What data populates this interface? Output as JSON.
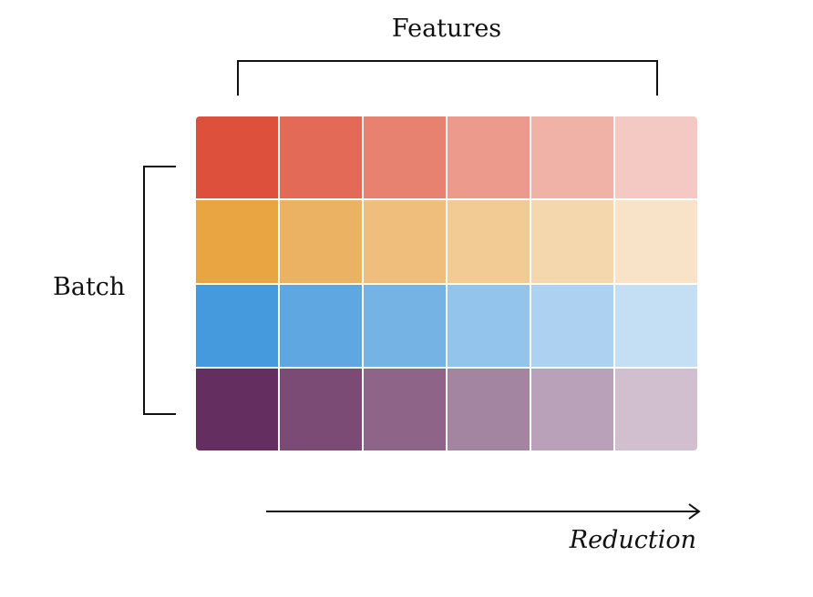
{
  "labels": {
    "features": "Features",
    "batch": "Batch",
    "reduction": "Reduction"
  },
  "grid": {
    "rows": 4,
    "columns": 6,
    "colors": [
      [
        "#dd503b",
        "#e36a56",
        "#e78271",
        "#ec9a8b",
        "#f0b2a7",
        "#f4c9c3"
      ],
      [
        "#e9a542",
        "#ecb264",
        "#f0be7c",
        "#f2ca94",
        "#f5d7ad",
        "#f8e3c8"
      ],
      [
        "#4599dd",
        "#5ea7e0",
        "#75b3e5",
        "#93c4eb",
        "#acd1f1",
        "#c4dff4"
      ],
      [
        "#652e61",
        "#7b4b76",
        "#8e6589",
        "#a385a1",
        "#baa1ba",
        "#d1becf"
      ]
    ]
  },
  "icons": {
    "features_bracket": "horizontal-bracket",
    "batch_bracket": "vertical-bracket",
    "reduction_arrow": "right-arrow"
  }
}
